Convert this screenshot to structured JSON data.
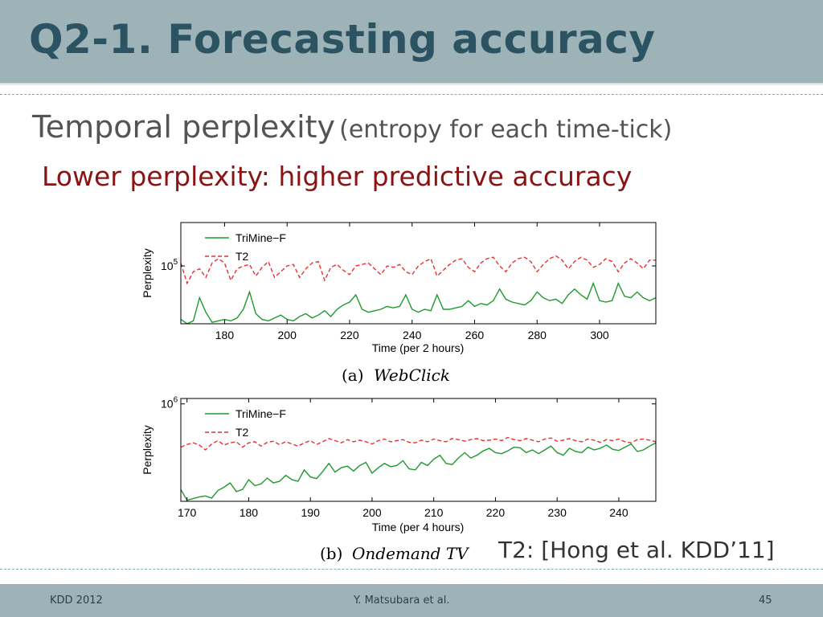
{
  "slide": {
    "title": "Q2-1. Forecasting accuracy",
    "subtitle_main": "Temporal perplexity",
    "subtitle_paren": "(entropy for each time-tick)",
    "note": "Lower perplexity: higher predictive accuracy",
    "reference": "T2: [Hong et al. KDD’11]"
  },
  "footer": {
    "left": "KDD 2012",
    "center": "Y. Matsubara et al.",
    "page": "45"
  },
  "colors": {
    "title_bar": "#9eb3b8",
    "title_text": "#2c5361",
    "note_text": "#8a1414",
    "trimine_series": "#1f9a2e",
    "t2_series": "#e8302e"
  },
  "chart_data": [
    {
      "type": "line",
      "caption_label": "(a)",
      "caption_name": "WebClick",
      "xlabel": "Time (per 2 hours)",
      "ylabel": "Perplexity",
      "y_scale": "log",
      "xlim": [
        166,
        318
      ],
      "ylim_log10": [
        4.6,
        5.3
      ],
      "xticks": [
        180,
        200,
        220,
        240,
        260,
        280,
        300
      ],
      "yticks": [
        {
          "value": 5,
          "label_base": "10",
          "label_exp": "5"
        }
      ],
      "legend": [
        "TriMine−F",
        "T2"
      ],
      "legend_position": "top-left",
      "x": [
        166,
        168,
        170,
        172,
        174,
        176,
        178,
        180,
        182,
        184,
        186,
        188,
        190,
        192,
        194,
        196,
        198,
        200,
        202,
        204,
        206,
        208,
        210,
        212,
        214,
        216,
        218,
        220,
        222,
        224,
        226,
        228,
        230,
        232,
        234,
        236,
        238,
        240,
        242,
        244,
        246,
        248,
        250,
        252,
        254,
        256,
        258,
        260,
        262,
        264,
        266,
        268,
        270,
        272,
        274,
        276,
        278,
        280,
        282,
        284,
        286,
        288,
        290,
        292,
        294,
        296,
        298,
        300,
        302,
        304,
        306,
        308,
        310,
        312,
        314,
        316,
        318
      ],
      "series": [
        {
          "name": "TriMine−F",
          "log10_values": [
            4.63,
            4.6,
            4.62,
            4.78,
            4.68,
            4.61,
            4.62,
            4.63,
            4.62,
            4.64,
            4.7,
            4.82,
            4.67,
            4.63,
            4.62,
            4.64,
            4.66,
            4.63,
            4.62,
            4.65,
            4.67,
            4.64,
            4.66,
            4.69,
            4.65,
            4.7,
            4.73,
            4.75,
            4.8,
            4.7,
            4.68,
            4.69,
            4.7,
            4.72,
            4.71,
            4.72,
            4.8,
            4.7,
            4.68,
            4.7,
            4.69,
            4.8,
            4.7,
            4.7,
            4.71,
            4.72,
            4.76,
            4.72,
            4.74,
            4.73,
            4.76,
            4.84,
            4.77,
            4.75,
            4.74,
            4.73,
            4.76,
            4.82,
            4.78,
            4.76,
            4.77,
            4.74,
            4.8,
            4.84,
            4.8,
            4.77,
            4.88,
            4.76,
            4.75,
            4.76,
            4.88,
            4.79,
            4.78,
            4.82,
            4.78,
            4.76,
            4.78
          ]
        },
        {
          "name": "T2",
          "log10_values": [
            5.02,
            4.88,
            4.96,
            4.98,
            4.92,
            5.02,
            5.05,
            5.02,
            4.9,
            4.98,
            5.0,
            5.01,
            4.93,
            4.99,
            5.03,
            4.92,
            4.96,
            5.0,
            5.01,
            4.92,
            4.98,
            5.02,
            5.03,
            4.9,
            4.99,
            5.01,
            4.97,
            4.94,
            5.0,
            5.01,
            5.02,
            4.98,
            4.94,
            5.0,
            4.99,
            5.01,
            4.96,
            4.94,
            5.0,
            5.03,
            5.05,
            4.93,
            4.97,
            5.01,
            5.04,
            5.05,
            4.99,
            4.96,
            5.02,
            5.05,
            5.06,
            5.0,
            4.96,
            5.02,
            5.05,
            5.06,
            5.03,
            4.96,
            5.01,
            5.05,
            5.07,
            5.04,
            4.98,
            5.03,
            5.06,
            5.04,
            4.99,
            5.01,
            5.05,
            5.03,
            4.96,
            5.02,
            5.05,
            5.02,
            4.98,
            5.04,
            5.04
          ]
        }
      ]
    },
    {
      "type": "line",
      "caption_label": "(b)",
      "caption_name": "Ondemand TV",
      "xlabel": "Time (per 4 hours)",
      "ylabel": "Perplexity",
      "y_scale": "log",
      "xlim": [
        169,
        246
      ],
      "ylim_log10": [
        4.2,
        6.1
      ],
      "xticks": [
        170,
        180,
        190,
        200,
        210,
        220,
        230,
        240
      ],
      "yticks": [
        {
          "value": 6,
          "label_base": "10",
          "label_exp": "6"
        }
      ],
      "legend": [
        "TriMine−F",
        "T2"
      ],
      "legend_position": "top-left",
      "x": [
        169,
        170,
        171,
        172,
        173,
        174,
        175,
        176,
        177,
        178,
        179,
        180,
        181,
        182,
        183,
        184,
        185,
        186,
        187,
        188,
        189,
        190,
        191,
        192,
        193,
        194,
        195,
        196,
        197,
        198,
        199,
        200,
        201,
        202,
        203,
        204,
        205,
        206,
        207,
        208,
        209,
        210,
        211,
        212,
        213,
        214,
        215,
        216,
        217,
        218,
        219,
        220,
        221,
        222,
        223,
        224,
        225,
        226,
        227,
        228,
        229,
        230,
        231,
        232,
        233,
        234,
        235,
        236,
        237,
        238,
        239,
        240,
        241,
        242,
        243,
        244,
        245,
        246
      ],
      "series": [
        {
          "name": "TriMine−F",
          "log10_values": [
            4.42,
            4.22,
            4.25,
            4.28,
            4.3,
            4.26,
            4.4,
            4.46,
            4.54,
            4.38,
            4.42,
            4.6,
            4.49,
            4.52,
            4.63,
            4.54,
            4.57,
            4.68,
            4.6,
            4.57,
            4.78,
            4.65,
            4.62,
            4.75,
            4.9,
            4.74,
            4.82,
            4.85,
            4.76,
            4.86,
            4.92,
            4.72,
            4.82,
            4.9,
            4.84,
            4.86,
            4.95,
            4.8,
            4.78,
            4.92,
            4.86,
            4.98,
            5.05,
            4.9,
            4.88,
            5.0,
            5.1,
            5.0,
            5.05,
            5.13,
            5.18,
            5.1,
            5.08,
            5.13,
            5.2,
            5.19,
            5.1,
            5.15,
            5.08,
            5.15,
            5.22,
            5.1,
            5.05,
            5.18,
            5.12,
            5.1,
            5.2,
            5.15,
            5.18,
            5.24,
            5.16,
            5.14,
            5.2,
            5.26,
            5.12,
            5.15,
            5.22,
            5.28
          ]
        },
        {
          "name": "T2",
          "log10_values": [
            5.2,
            5.25,
            5.28,
            5.24,
            5.15,
            5.26,
            5.32,
            5.24,
            5.28,
            5.3,
            5.2,
            5.28,
            5.3,
            5.22,
            5.29,
            5.31,
            5.25,
            5.3,
            5.26,
            5.22,
            5.28,
            5.32,
            5.25,
            5.3,
            5.36,
            5.32,
            5.28,
            5.34,
            5.3,
            5.33,
            5.3,
            5.26,
            5.32,
            5.35,
            5.3,
            5.32,
            5.34,
            5.29,
            5.28,
            5.33,
            5.3,
            5.35,
            5.32,
            5.3,
            5.36,
            5.34,
            5.31,
            5.34,
            5.36,
            5.32,
            5.33,
            5.35,
            5.32,
            5.38,
            5.34,
            5.32,
            5.36,
            5.33,
            5.3,
            5.35,
            5.37,
            5.31,
            5.33,
            5.36,
            5.32,
            5.3,
            5.35,
            5.33,
            5.29,
            5.34,
            5.32,
            5.35,
            5.3,
            5.28,
            5.34,
            5.35,
            5.33,
            5.3
          ]
        }
      ]
    }
  ]
}
